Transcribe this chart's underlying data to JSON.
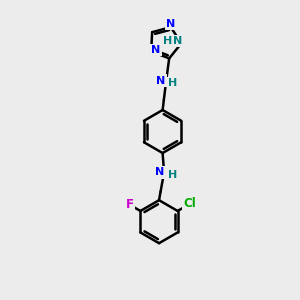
{
  "bg_color": "#ececec",
  "bond_color": "#000000",
  "nitrogen_color": "#0000ff",
  "nh_color": "#008080",
  "cl_color": "#00aa00",
  "f_color": "#cc00cc",
  "bond_width": 1.8,
  "figsize": [
    3.0,
    3.0
  ],
  "dpi": 100,
  "xlim": [
    0,
    10
  ],
  "ylim": [
    0,
    10
  ]
}
